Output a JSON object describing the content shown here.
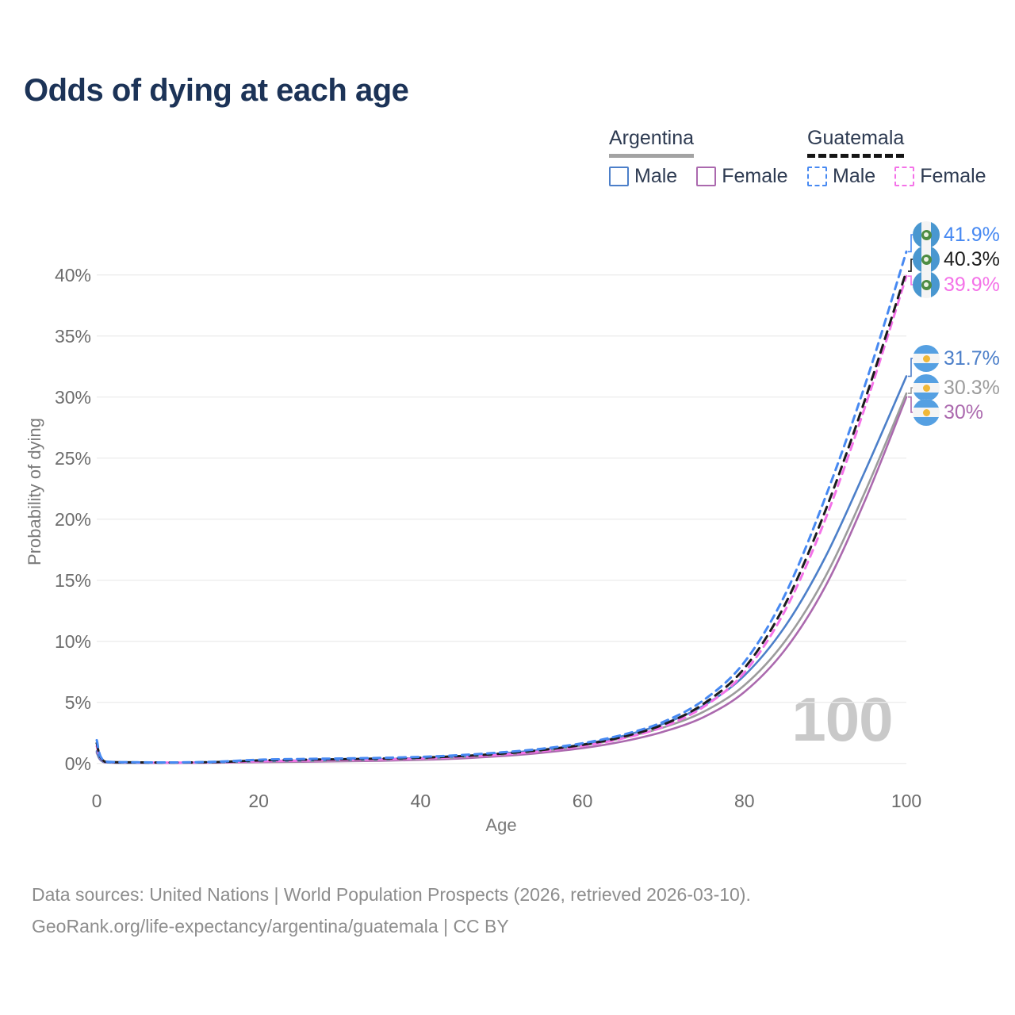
{
  "title": "Odds of dying at each age",
  "legend": {
    "groups": [
      {
        "label": "Argentina",
        "line_style": "solid",
        "underline_color": "#a3a3a3",
        "items": [
          {
            "label": "Male",
            "color": "#4c7fc9"
          },
          {
            "label": "Female",
            "color": "#ab69ae"
          }
        ]
      },
      {
        "label": "Guatemala",
        "line_style": "dashed",
        "underline_color": "#151515",
        "items": [
          {
            "label": "Male",
            "color": "#4789f2"
          },
          {
            "label": "Female",
            "color": "#f472e8"
          }
        ]
      }
    ]
  },
  "watermark": "100",
  "footer": {
    "line1": "Data sources: United Nations | World Population Prospects (2026, retrieved 2026-03-10).",
    "line2": "GeoRank.org/life-expectancy/argentina/guatemala | CC BY"
  },
  "flag_colors": {
    "argentina": {
      "blue": "#55A0E2",
      "white": "#F4F4F4",
      "sun": "#F0B838"
    },
    "guatemala": {
      "blue": "#4997D0",
      "white": "#F4F4F4",
      "emblem": "#4E8C43"
    }
  },
  "chart_data": {
    "type": "line",
    "title": "Odds of dying at each age",
    "xlabel": "Age",
    "ylabel": "Probability of dying",
    "xlim": [
      0,
      100
    ],
    "ylim": [
      0,
      44.5
    ],
    "grid": true,
    "legend_position": "top-right",
    "x_ticks": [
      "0",
      "20",
      "40",
      "60",
      "80",
      "100"
    ],
    "x_tick_values": [
      0,
      20,
      40,
      60,
      80,
      100
    ],
    "y_ticks": [
      "0%",
      "5%",
      "10%",
      "15%",
      "20%",
      "25%",
      "30%",
      "35%",
      "40%"
    ],
    "y_tick_values": [
      0,
      5,
      10,
      15,
      20,
      25,
      30,
      35,
      40
    ],
    "ages": [
      0,
      1,
      5,
      10,
      15,
      20,
      25,
      30,
      35,
      40,
      45,
      50,
      55,
      60,
      65,
      70,
      75,
      80,
      85,
      90,
      95,
      100
    ],
    "unit": "percent",
    "series": [
      {
        "id": "guatemala-male",
        "name": "Guatemala Male",
        "country": "Guatemala",
        "sex": "Male",
        "line_style": "dashed",
        "color": "#4789f2",
        "end_label": "41.9%",
        "end_value": 41.9,
        "values": [
          1.9,
          0.16,
          0.09,
          0.08,
          0.14,
          0.3,
          0.36,
          0.4,
          0.45,
          0.53,
          0.68,
          0.9,
          1.2,
          1.65,
          2.35,
          3.4,
          5.2,
          8.3,
          13.8,
          21.8,
          31.2,
          41.9
        ]
      },
      {
        "id": "guatemala-total",
        "name": "Guatemala Both sexes",
        "country": "Guatemala",
        "sex": "Both",
        "line_style": "dashed",
        "color": "#1c1c1c",
        "end_label": "40.3%",
        "end_value": 40.3,
        "values": [
          1.65,
          0.14,
          0.08,
          0.07,
          0.11,
          0.24,
          0.3,
          0.34,
          0.39,
          0.47,
          0.6,
          0.8,
          1.1,
          1.52,
          2.18,
          3.18,
          4.9,
          7.8,
          13.0,
          20.7,
          30.0,
          40.3
        ]
      },
      {
        "id": "guatemala-female",
        "name": "Guatemala Female",
        "country": "Guatemala",
        "sex": "Female",
        "line_style": "dashed",
        "color": "#f472e8",
        "end_label": "39.9%",
        "end_value": 39.9,
        "values": [
          1.4,
          0.13,
          0.07,
          0.06,
          0.09,
          0.17,
          0.22,
          0.27,
          0.32,
          0.4,
          0.53,
          0.72,
          1.0,
          1.42,
          2.05,
          3.0,
          4.65,
          7.45,
          12.5,
          20.0,
          29.4,
          39.9
        ]
      },
      {
        "id": "argentina-male",
        "name": "Argentina Male",
        "country": "Argentina",
        "sex": "Male",
        "line_style": "solid",
        "color": "#4c7fc9",
        "end_label": "31.7%",
        "end_value": 31.7,
        "values": [
          1.0,
          0.09,
          0.05,
          0.05,
          0.09,
          0.19,
          0.24,
          0.28,
          0.34,
          0.44,
          0.58,
          0.82,
          1.12,
          1.55,
          2.25,
          3.25,
          4.75,
          7.2,
          11.2,
          16.9,
          24.1,
          31.7
        ]
      },
      {
        "id": "argentina-total",
        "name": "Argentina Both sexes",
        "country": "Argentina",
        "sex": "Both",
        "line_style": "solid",
        "color": "#9c9c9c",
        "end_label": "30.3%",
        "end_value": 30.3,
        "values": [
          0.9,
          0.08,
          0.04,
          0.04,
          0.07,
          0.14,
          0.18,
          0.22,
          0.27,
          0.36,
          0.5,
          0.72,
          1.02,
          1.45,
          2.08,
          2.95,
          4.25,
          6.4,
          10.0,
          15.3,
          22.4,
          30.3
        ]
      },
      {
        "id": "argentina-female",
        "name": "Argentina Female",
        "country": "Argentina",
        "sex": "Female",
        "line_style": "solid",
        "color": "#ab69ae",
        "end_label": "30%",
        "end_value": 30.0,
        "values": [
          0.85,
          0.08,
          0.04,
          0.04,
          0.06,
          0.1,
          0.13,
          0.17,
          0.21,
          0.29,
          0.41,
          0.6,
          0.87,
          1.25,
          1.8,
          2.6,
          3.8,
          5.85,
          9.3,
          14.5,
          21.7,
          30.0
        ]
      }
    ]
  }
}
